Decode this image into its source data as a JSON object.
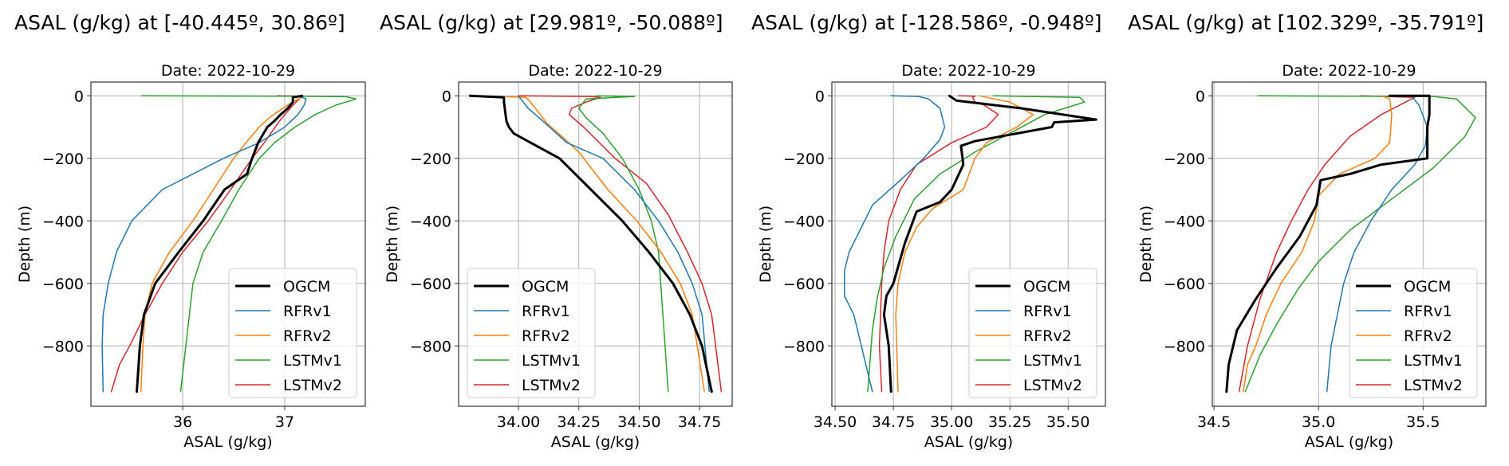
{
  "chart_data": [
    {
      "type": "line",
      "suptitle": "ASAL (g/kg) at [-40.445º, 30.86º]",
      "title": "Date: 2022-10-29",
      "xlabel": "ASAL (g/kg)",
      "ylabel": "Depth (m)",
      "xlim": [
        35.1,
        37.79
      ],
      "ylim": [
        -993,
        44
      ],
      "xticks": [
        36,
        37
      ],
      "xtick_labels": [
        "36",
        "37"
      ],
      "yticks": [
        0,
        -200,
        -400,
        -600,
        -800
      ],
      "ytick_labels": [
        "0",
        "−200",
        "−400",
        "−600",
        "−800"
      ],
      "grid": true,
      "legend_position": "lower-right",
      "series": [
        {
          "name": "OGCM",
          "color": "#000000",
          "width": 3,
          "x": [
            37.17,
            37.08,
            37.08,
            37.03,
            36.96,
            36.9,
            36.83,
            36.74,
            36.68,
            36.63,
            36.41,
            36.2,
            35.96,
            35.73,
            35.62,
            35.58,
            35.57,
            35.55
          ],
          "depth": [
            0,
            -5,
            -20,
            -40,
            -60,
            -80,
            -100,
            -150,
            -200,
            -250,
            -300,
            -400,
            -500,
            -600,
            -700,
            -800,
            -850,
            -946
          ]
        },
        {
          "name": "RFRv1",
          "color": "#1f77b4",
          "width": 1.5,
          "x": [
            37.15,
            37.21,
            37.19,
            37.13,
            37.0,
            36.75,
            36.4,
            36.1,
            35.8,
            35.5,
            35.35,
            35.27,
            35.22,
            35.21,
            35.22
          ],
          "depth": [
            -3,
            -10,
            -30,
            -60,
            -100,
            -150,
            -200,
            -250,
            -300,
            -400,
            -500,
            -600,
            -700,
            -800,
            -946
          ]
        },
        {
          "name": "RFRv2",
          "color": "#ff7f0e",
          "width": 1.5,
          "x": [
            37.18,
            37.08,
            36.98,
            36.85,
            36.75,
            36.62,
            36.5,
            36.3,
            36.1,
            35.87,
            35.7,
            35.63,
            35.61,
            35.59
          ],
          "depth": [
            -3,
            -20,
            -40,
            -70,
            -100,
            -150,
            -200,
            -300,
            -400,
            -500,
            -600,
            -700,
            -800,
            -946
          ]
        },
        {
          "name": "LSTMv1",
          "color": "#2ca02c",
          "width": 1.5,
          "x": [
            35.6,
            37.0,
            37.6,
            37.7,
            37.5,
            37.3,
            37.1,
            36.9,
            36.75,
            36.55,
            36.38,
            36.2,
            36.1,
            35.98
          ],
          "depth": [
            0,
            -1,
            -3,
            -10,
            -30,
            -60,
            -100,
            -150,
            -200,
            -300,
            -400,
            -500,
            -600,
            -946
          ]
        },
        {
          "name": "LSTMv2",
          "color": "#d62728",
          "width": 1.5,
          "x": [
            36.93,
            37.15,
            37.16,
            37.08,
            36.95,
            36.8,
            36.68,
            36.47,
            36.25,
            36.0,
            35.8,
            35.63,
            35.48,
            35.38,
            35.3
          ],
          "depth": [
            0,
            -1,
            -5,
            -30,
            -80,
            -150,
            -200,
            -300,
            -400,
            -500,
            -600,
            -700,
            -800,
            -860,
            -946
          ]
        }
      ]
    },
    {
      "type": "line",
      "suptitle": "ASAL (g/kg) at [29.981º, -50.088º]",
      "title": "Date: 2022-10-29",
      "xlabel": "ASAL (g/kg)",
      "ylabel": "Depth (m)",
      "xlim": [
        33.752,
        34.885
      ],
      "ylim": [
        -993,
        44
      ],
      "xticks": [
        34.0,
        34.25,
        34.5,
        34.75
      ],
      "xtick_labels": [
        "34.00",
        "34.25",
        "34.50",
        "34.75"
      ],
      "yticks": [
        0,
        -200,
        -400,
        -600,
        -800
      ],
      "ytick_labels": [
        "0",
        "−200",
        "−400",
        "−600",
        "−800"
      ],
      "grid": true,
      "legend_position": "lower-left",
      "series": [
        {
          "name": "OGCM",
          "color": "#000000",
          "width": 3,
          "x": [
            33.8,
            33.94,
            33.94,
            33.95,
            33.96,
            33.98,
            34.05,
            34.17,
            34.3,
            34.43,
            34.54,
            34.64,
            34.71,
            34.76,
            34.8
          ],
          "depth": [
            0,
            -5,
            -20,
            -80,
            -100,
            -120,
            -150,
            -200,
            -300,
            -400,
            -500,
            -600,
            -700,
            -800,
            -946
          ]
        },
        {
          "name": "RFRv1",
          "color": "#1f77b4",
          "width": 1.5,
          "x": [
            34.0,
            34.01,
            34.04,
            34.1,
            34.2,
            34.35,
            34.48,
            34.58,
            34.66,
            34.72,
            34.76,
            34.79
          ],
          "depth": [
            -2,
            -10,
            -40,
            -80,
            -150,
            -200,
            -300,
            -400,
            -500,
            -600,
            -700,
            -946
          ]
        },
        {
          "name": "RFRv2",
          "color": "#ff7f0e",
          "width": 1.5,
          "x": [
            33.95,
            34.03,
            34.05,
            34.08,
            34.12,
            34.18,
            34.25,
            34.37,
            34.49,
            34.59,
            34.67,
            34.72,
            34.77
          ],
          "depth": [
            -3,
            -5,
            -20,
            -50,
            -90,
            -130,
            -180,
            -300,
            -400,
            -500,
            -600,
            -700,
            -946
          ]
        },
        {
          "name": "LSTMv1",
          "color": "#2ca02c",
          "width": 1.5,
          "x": [
            34.32,
            34.48,
            34.28,
            34.25,
            34.28,
            34.35,
            34.43,
            34.5,
            34.55,
            34.58,
            34.62
          ],
          "depth": [
            0,
            -2,
            -10,
            -40,
            -70,
            -120,
            -200,
            -300,
            -400,
            -500,
            -946
          ]
        },
        {
          "name": "LSTMv2",
          "color": "#d62728",
          "width": 1.5,
          "x": [
            34.0,
            34.3,
            34.34,
            34.28,
            34.22,
            34.21,
            34.27,
            34.4,
            34.53,
            34.62,
            34.7,
            34.76,
            34.8,
            34.84
          ],
          "depth": [
            0,
            -2,
            -5,
            -20,
            -40,
            -60,
            -100,
            -200,
            -280,
            -380,
            -500,
            -600,
            -700,
            -946
          ]
        }
      ]
    },
    {
      "type": "line",
      "suptitle": "ASAL (g/kg) at [-128.586º, -0.948º]",
      "title": "Date: 2022-10-29",
      "xlabel": "ASAL (g/kg)",
      "ylabel": "Depth (m)",
      "xlim": [
        34.486,
        35.66
      ],
      "ylim": [
        -993,
        44
      ],
      "xticks": [
        34.5,
        34.75,
        35.0,
        35.25,
        35.5
      ],
      "xtick_labels": [
        "34.50",
        "34.75",
        "35.00",
        "35.25",
        "35.50"
      ],
      "yticks": [
        0,
        -200,
        -400,
        -600,
        -800
      ],
      "ytick_labels": [
        "0",
        "−200",
        "−400",
        "−600",
        "−800"
      ],
      "grid": true,
      "legend_position": "lower-right",
      "series": [
        {
          "name": "OGCM",
          "color": "#000000",
          "width": 3,
          "x": [
            34.99,
            35.0,
            35.02,
            35.3,
            35.62,
            35.44,
            35.43,
            35.1,
            35.04,
            35.05,
            35.0,
            34.95,
            34.85,
            34.8,
            34.75,
            34.72,
            34.71,
            34.73,
            34.74
          ],
          "depth": [
            0,
            -5,
            -15,
            -40,
            -76,
            -85,
            -100,
            -145,
            -160,
            -220,
            -300,
            -340,
            -370,
            -470,
            -600,
            -640,
            -700,
            -800,
            -946
          ]
        },
        {
          "name": "RFRv1",
          "color": "#1f77b4",
          "width": 1.5,
          "x": [
            34.74,
            34.86,
            34.9,
            34.95,
            34.97,
            34.95,
            34.88,
            34.78,
            34.66,
            34.56,
            34.54,
            34.54,
            34.58,
            34.66
          ],
          "depth": [
            0,
            -2,
            -10,
            -40,
            -100,
            -140,
            -200,
            -270,
            -350,
            -500,
            -560,
            -640,
            -700,
            -946
          ]
        },
        {
          "name": "RFRv2",
          "color": "#ff7f0e",
          "width": 1.5,
          "x": [
            35.12,
            35.15,
            35.25,
            35.35,
            35.28,
            35.15,
            35.1,
            35.05,
            34.92,
            34.85,
            34.8,
            34.77,
            34.76,
            34.77
          ],
          "depth": [
            0,
            -5,
            -20,
            -60,
            -100,
            -150,
            -200,
            -300,
            -360,
            -420,
            -500,
            -600,
            -700,
            -946
          ]
        },
        {
          "name": "LSTMv1",
          "color": "#2ca02c",
          "width": 1.5,
          "x": [
            35.18,
            35.55,
            35.57,
            35.4,
            35.25,
            35.1,
            34.95,
            34.84,
            34.76,
            34.71,
            34.68,
            34.66,
            34.64
          ],
          "depth": [
            0,
            -5,
            -20,
            -60,
            -120,
            -180,
            -250,
            -330,
            -450,
            -550,
            -650,
            -750,
            -946
          ]
        },
        {
          "name": "LSTMv2",
          "color": "#d62728",
          "width": 1.5,
          "x": [
            35.03,
            35.1,
            35.09,
            35.1,
            35.14,
            35.2,
            35.15,
            35.0,
            34.85,
            34.78,
            34.73,
            34.71,
            34.7,
            34.69,
            34.7
          ],
          "depth": [
            0,
            -1,
            -5,
            -20,
            -30,
            -60,
            -100,
            -150,
            -220,
            -300,
            -400,
            -500,
            -600,
            -800,
            -946
          ]
        }
      ]
    },
    {
      "type": "line",
      "suptitle": "ASAL (g/kg) at [102.329º, -35.791º]",
      "title": "Date: 2022-10-29",
      "xlabel": "ASAL (g/kg)",
      "ylabel": "Depth (m)",
      "xlim": [
        34.492,
        35.8
      ],
      "ylim": [
        -993,
        44
      ],
      "xticks": [
        34.5,
        35.0,
        35.5
      ],
      "xtick_labels": [
        "34.5",
        "35.0",
        "35.5"
      ],
      "yticks": [
        0,
        -200,
        -400,
        -600,
        -800
      ],
      "ytick_labels": [
        "0",
        "−200",
        "−400",
        "−600",
        "−800"
      ],
      "grid": true,
      "legend_position": "lower-right",
      "series": [
        {
          "name": "OGCM",
          "color": "#000000",
          "width": 3,
          "x": [
            35.34,
            35.53,
            35.53,
            35.53,
            35.52,
            35.52,
            35.3,
            35.15,
            35.01,
            34.99,
            34.91,
            34.8,
            34.7,
            34.61,
            34.57,
            34.56
          ],
          "depth": [
            0,
            0,
            -10,
            -60,
            -100,
            -200,
            -220,
            -250,
            -270,
            -350,
            -450,
            -550,
            -650,
            -750,
            -860,
            -946
          ]
        },
        {
          "name": "RFRv1",
          "color": "#1f77b4",
          "width": 1.5,
          "x": [
            35.45,
            35.48,
            35.52,
            35.51,
            35.46,
            35.35,
            35.25,
            35.17,
            35.12,
            35.09,
            35.06,
            35.04
          ],
          "depth": [
            -5,
            -30,
            -100,
            -160,
            -220,
            -300,
            -400,
            -500,
            -600,
            -700,
            -800,
            -946
          ]
        },
        {
          "name": "RFRv2",
          "color": "#ff7f0e",
          "width": 1.5,
          "x": [
            35.3,
            35.34,
            35.35,
            35.34,
            35.27,
            35.1,
            35.0,
            34.98,
            34.92,
            34.82,
            34.75,
            34.7,
            34.66,
            34.64
          ],
          "depth": [
            0,
            -10,
            -60,
            -150,
            -200,
            -250,
            -320,
            -400,
            -500,
            -600,
            -700,
            -800,
            -860,
            -946
          ]
        },
        {
          "name": "LSTMv1",
          "color": "#2ca02c",
          "width": 1.5,
          "x": [
            34.71,
            35.55,
            35.66,
            35.75,
            35.7,
            35.55,
            35.35,
            35.15,
            35.0,
            34.9,
            34.8,
            34.72,
            34.65
          ],
          "depth": [
            0,
            -2,
            -10,
            -70,
            -130,
            -230,
            -330,
            -430,
            -530,
            -620,
            -730,
            -830,
            -946
          ]
        },
        {
          "name": "LSTMv2",
          "color": "#d62728",
          "width": 1.5,
          "x": [
            35.2,
            35.46,
            35.3,
            35.15,
            35.03,
            34.95,
            34.87,
            34.8,
            34.72,
            34.66,
            34.62
          ],
          "depth": [
            0,
            -5,
            -60,
            -130,
            -220,
            -300,
            -400,
            -500,
            -650,
            -800,
            -946
          ]
        }
      ]
    }
  ]
}
